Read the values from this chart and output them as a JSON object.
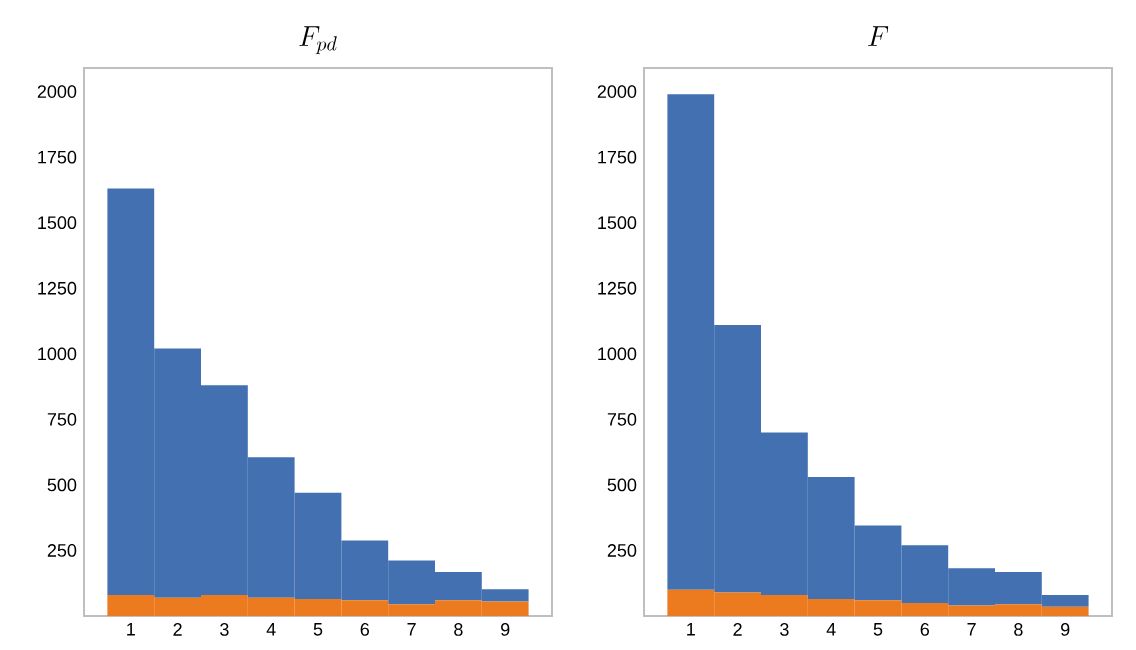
{
  "chart_data": [
    {
      "type": "bar",
      "stacked": true,
      "title": "F_{pd}",
      "categories": [
        "1",
        "2",
        "3",
        "4",
        "5",
        "6",
        "7",
        "8",
        "9"
      ],
      "ylim": [
        0,
        2090
      ],
      "yticks": [
        250,
        500,
        750,
        1000,
        1250,
        1500,
        1750,
        2000
      ],
      "grid": false,
      "series": [
        {
          "color": "#ec7a1e",
          "values": [
            80,
            70,
            80,
            70,
            65,
            60,
            45,
            60,
            55
          ]
        },
        {
          "color": "#4270b0",
          "values": [
            1550,
            950,
            800,
            535,
            405,
            228,
            167,
            108,
            47
          ]
        }
      ]
    },
    {
      "type": "bar",
      "stacked": true,
      "title": "F",
      "categories": [
        "1",
        "2",
        "3",
        "4",
        "5",
        "6",
        "7",
        "8",
        "9"
      ],
      "ylim": [
        0,
        2090
      ],
      "yticks": [
        250,
        500,
        750,
        1000,
        1250,
        1500,
        1750,
        2000
      ],
      "grid": false,
      "series": [
        {
          "color": "#ec7a1e",
          "values": [
            100,
            90,
            80,
            65,
            60,
            50,
            40,
            45,
            35
          ]
        },
        {
          "color": "#4270b0",
          "values": [
            1890,
            1020,
            620,
            465,
            285,
            220,
            142,
            123,
            45
          ]
        }
      ]
    }
  ]
}
